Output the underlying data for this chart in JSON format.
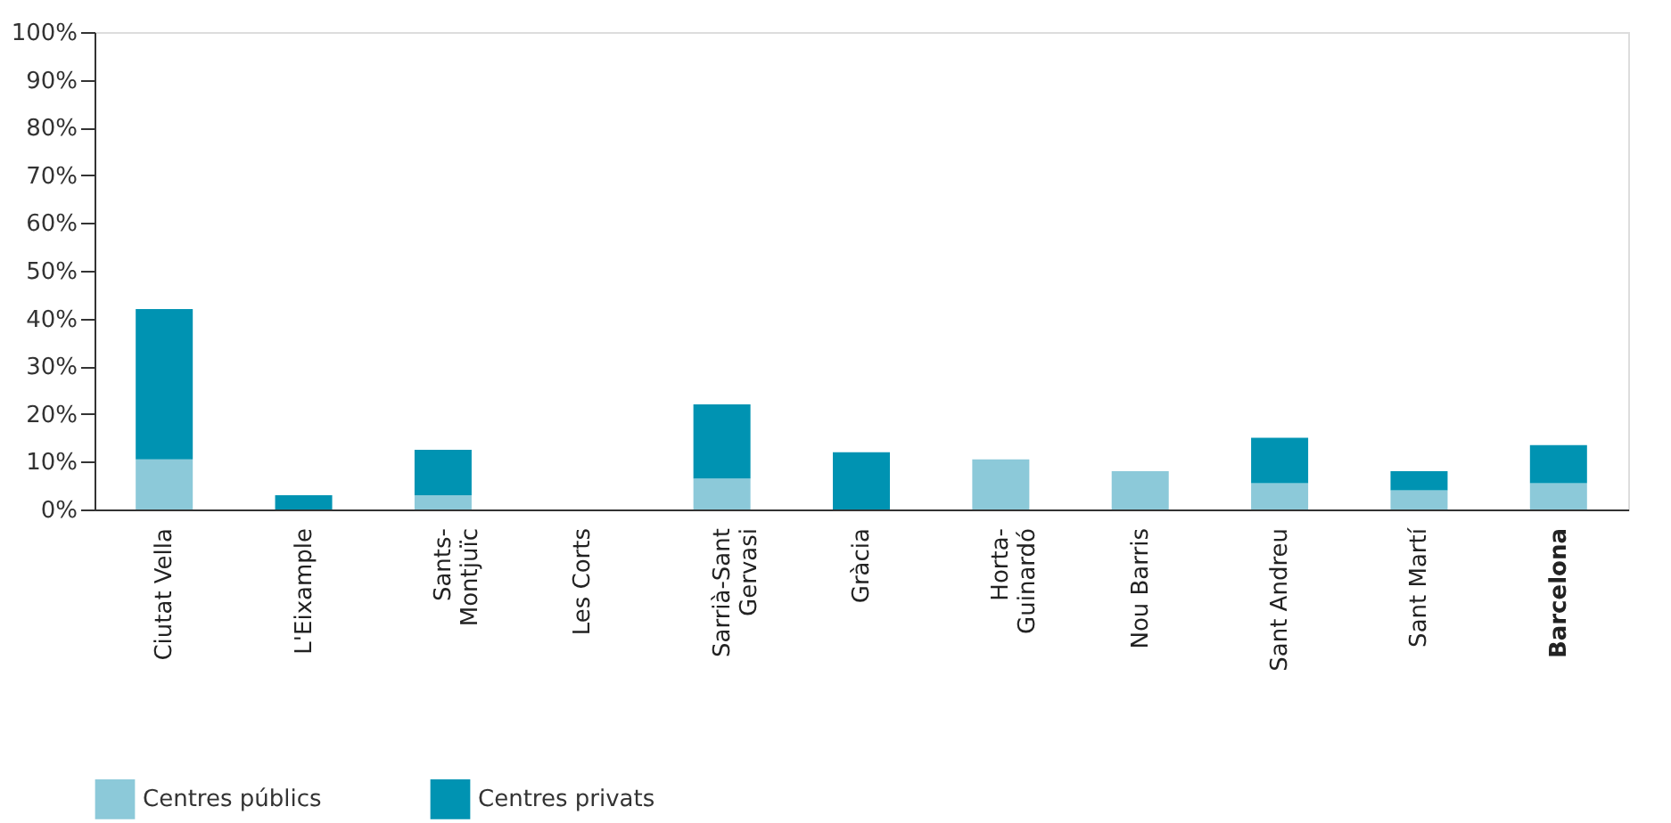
{
  "chart_data": {
    "type": "bar",
    "stacked": true,
    "categories": [
      "Ciutat Vella",
      "L'Eixample",
      "Sants-\nMontjuïc",
      "Les Corts",
      "Sarrià-Sant\nGervasi",
      "Gràcia",
      "Horta-\nGuinardó",
      "Nou Barris",
      "Sant Andreu",
      "Sant Martí",
      "Barcelona"
    ],
    "series": [
      {
        "name": "Centres públics",
        "color": "#8cc9d9",
        "values": [
          10.5,
          0,
          3,
          0,
          6.5,
          0,
          10.5,
          8,
          5.5,
          4,
          5.5
        ]
      },
      {
        "name": "Centres privats",
        "color": "#0093b2",
        "values": [
          31.5,
          3,
          9.5,
          0,
          15.5,
          12,
          0,
          0,
          9.5,
          4,
          8
        ]
      }
    ],
    "ylim": [
      0,
      100
    ],
    "yticks": [
      {
        "value": 0,
        "label": "0%"
      },
      {
        "value": 10,
        "label": "10%"
      },
      {
        "value": 20,
        "label": "20%"
      },
      {
        "value": 30,
        "label": "30%"
      },
      {
        "value": 40,
        "label": "40%"
      },
      {
        "value": 50,
        "label": "50%"
      },
      {
        "value": 60,
        "label": "60%"
      },
      {
        "value": 70,
        "label": "70%"
      },
      {
        "value": 80,
        "label": "80%"
      },
      {
        "value": 90,
        "label": "90%"
      },
      {
        "value": 100,
        "label": "100%"
      }
    ],
    "grid": false,
    "legend": "bottom left"
  }
}
